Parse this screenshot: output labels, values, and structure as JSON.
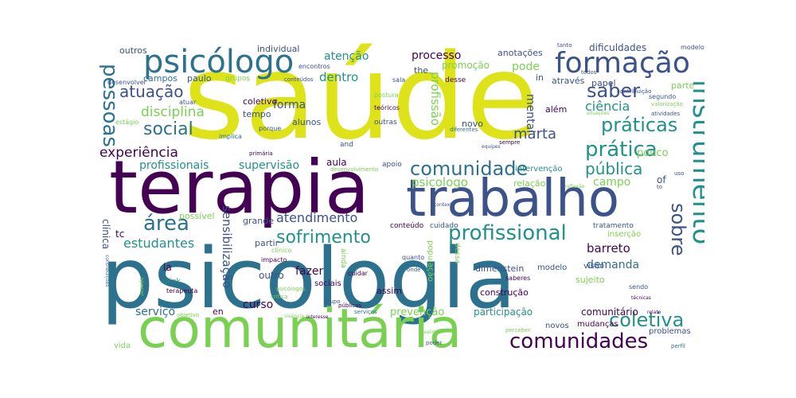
{
  "palette": {
    "yellow": "#dde318",
    "purple": "#440154",
    "teal": "#2c728e",
    "green": "#7ad151",
    "navy": "#3b528b",
    "seagreen": "#21918c"
  },
  "words": [
    {
      "text": "saúde",
      "color": "yellow"
    },
    {
      "text": "terapia",
      "color": "purple"
    },
    {
      "text": "psicologia",
      "color": "teal"
    },
    {
      "text": "comunitária",
      "color": "green"
    },
    {
      "text": "trabalho",
      "color": "navy"
    },
    {
      "text": "psicólogo",
      "color": "teal"
    },
    {
      "text": "formação",
      "color": "navy"
    },
    {
      "text": "instrumento",
      "color": "seagreen"
    },
    {
      "text": "comunidade",
      "color": "teal"
    },
    {
      "text": "profissional",
      "color": "seagreen"
    },
    {
      "text": "comunidades",
      "color": "purple"
    },
    {
      "text": "práticas",
      "color": "seagreen"
    },
    {
      "text": "prática",
      "color": "seagreen"
    },
    {
      "text": "pública",
      "color": "seagreen"
    },
    {
      "text": "coletiva",
      "color": "seagreen"
    },
    {
      "text": "pessoas",
      "color": "teal"
    },
    {
      "text": "sofrimento",
      "color": "seagreen"
    },
    {
      "text": "área",
      "color": "teal"
    },
    {
      "text": "social",
      "color": "teal"
    },
    {
      "text": "saber",
      "color": "navy"
    },
    {
      "text": "sobre",
      "color": "navy"
    },
    {
      "text": "atuação",
      "color": "navy"
    },
    {
      "text": "disciplina",
      "color": "green"
    },
    {
      "text": "ciência",
      "color": "seagreen"
    },
    {
      "text": "experiência",
      "color": "purple"
    },
    {
      "text": "marta",
      "color": "navy"
    },
    {
      "text": "profissionais",
      "color": "seagreen"
    },
    {
      "text": "supervisão",
      "color": "seagreen"
    },
    {
      "text": "estudantes",
      "color": "seagreen"
    },
    {
      "text": "atendimento",
      "color": "navy"
    },
    {
      "text": "sensibilização",
      "color": "navy"
    },
    {
      "text": "processo",
      "color": "purple"
    },
    {
      "text": "atenção",
      "color": "seagreen"
    },
    {
      "text": "dentro",
      "color": "seagreen"
    },
    {
      "text": "profissão",
      "color": "green"
    },
    {
      "text": "psicologo",
      "color": "green"
    },
    {
      "text": "forma",
      "color": "navy"
    },
    {
      "text": "aula",
      "color": "purple"
    },
    {
      "text": "campo",
      "color": "green"
    },
    {
      "text": "pode",
      "color": "green"
    },
    {
      "text": "mental",
      "color": "navy"
    },
    {
      "text": "pouco",
      "color": "green"
    },
    {
      "text": "barreto",
      "color": "purple"
    },
    {
      "text": "demanda",
      "color": "teal"
    },
    {
      "text": "curso",
      "color": "purple"
    },
    {
      "text": "fazer",
      "color": "purple"
    },
    {
      "text": "serviço",
      "color": "teal"
    },
    {
      "text": "prevenção",
      "color": "green"
    },
    {
      "text": "participação",
      "color": "seagreen"
    },
    {
      "text": "comunitário",
      "color": "purple"
    },
    {
      "text": "dificuldades",
      "color": "navy"
    },
    {
      "text": "outros",
      "color": "navy"
    },
    {
      "text": "individual",
      "color": "navy"
    },
    {
      "text": "anotações",
      "color": "navy"
    },
    {
      "text": "promoção",
      "color": "green"
    },
    {
      "text": "campos",
      "color": "teal"
    },
    {
      "text": "paulo",
      "color": "navy"
    },
    {
      "text": "grupos",
      "color": "green"
    },
    {
      "text": "através",
      "color": "navy"
    },
    {
      "text": "papel",
      "color": "navy"
    },
    {
      "text": "parte",
      "color": "green"
    },
    {
      "text": "coletivo",
      "color": "purple"
    },
    {
      "text": "tempo",
      "color": "navy"
    },
    {
      "text": "alunos",
      "color": "navy"
    },
    {
      "text": "novo",
      "color": "navy"
    },
    {
      "text": "além",
      "color": "purple"
    },
    {
      "text": "clínica",
      "color": "navy"
    },
    {
      "text": "possível",
      "color": "green"
    },
    {
      "text": "grande",
      "color": "navy"
    },
    {
      "text": "partir",
      "color": "navy"
    },
    {
      "text": "outro",
      "color": "navy"
    },
    {
      "text": "assim",
      "color": "purple"
    },
    {
      "text": "dimenstein",
      "color": "navy"
    },
    {
      "text": "modelo",
      "color": "navy"
    },
    {
      "text": "visão",
      "color": "navy"
    },
    {
      "text": "sujeito",
      "color": "green"
    },
    {
      "text": "construção",
      "color": "purple"
    },
    {
      "text": "mudanças",
      "color": "purple"
    },
    {
      "text": "novos",
      "color": "navy"
    },
    {
      "text": "relação",
      "color": "green"
    },
    {
      "text": "intervenção",
      "color": "seagreen"
    },
    {
      "text": "la",
      "color": "purple"
    },
    {
      "text": "tc",
      "color": "purple"
    },
    {
      "text": "of",
      "color": "navy"
    },
    {
      "text": "in",
      "color": "navy"
    },
    {
      "text": "the",
      "color": "navy"
    },
    {
      "text": "en",
      "color": "purple"
    },
    {
      "text": "vida",
      "color": "green"
    },
    {
      "text": "problemas",
      "color": "navy"
    },
    {
      "text": "inserção",
      "color": "green"
    },
    {
      "text": "tratamento",
      "color": "navy"
    },
    {
      "text": "sociais",
      "color": "purple"
    },
    {
      "text": "população",
      "color": "green"
    },
    {
      "text": "desenvolver",
      "color": "navy"
    },
    {
      "text": "atuar",
      "color": "navy"
    },
    {
      "text": "estágio",
      "color": "green"
    },
    {
      "text": "porque",
      "color": "navy"
    },
    {
      "text": "implica",
      "color": "teal"
    },
    {
      "text": "teóricos",
      "color": "purple"
    },
    {
      "text": "outras",
      "color": "navy"
    },
    {
      "text": "conteúdos",
      "color": "navy"
    },
    {
      "text": "encontros",
      "color": "navy"
    },
    {
      "text": "postura",
      "color": "green"
    },
    {
      "text": "desse",
      "color": "purple"
    },
    {
      "text": "sala",
      "color": "navy"
    },
    {
      "text": "tanto",
      "color": "navy"
    },
    {
      "text": "todos",
      "color": "navy"
    },
    {
      "text": "segundo",
      "color": "navy"
    },
    {
      "text": "modelos",
      "color": "navy"
    },
    {
      "text": "valorização",
      "color": "green"
    },
    {
      "text": "atividades",
      "color": "navy"
    },
    {
      "text": "sempre",
      "color": "purple"
    },
    {
      "text": "primária",
      "color": "purple"
    },
    {
      "text": "desenvolvimento",
      "color": "green"
    },
    {
      "text": "apoio",
      "color": "navy"
    },
    {
      "text": "and",
      "color": "navy"
    },
    {
      "text": "conteúdo",
      "color": "purple"
    },
    {
      "text": "cuidado",
      "color": "navy"
    },
    {
      "text": "cuidar",
      "color": "purple"
    },
    {
      "text": "ainda",
      "color": "green"
    },
    {
      "text": "quanto",
      "color": "navy"
    },
    {
      "text": "onde",
      "color": "navy"
    },
    {
      "text": "saberes",
      "color": "purple"
    },
    {
      "text": "sendo",
      "color": "navy"
    },
    {
      "text": "spink",
      "color": "seagreen"
    },
    {
      "text": "terapeuta",
      "color": "purple"
    },
    {
      "text": "apesar",
      "color": "green"
    },
    {
      "text": "impacto",
      "color": "purple"
    },
    {
      "text": "clínico",
      "color": "green"
    },
    {
      "text": "psicólogos",
      "color": "green"
    },
    {
      "text": "objetivo",
      "color": "green"
    },
    {
      "text": "crítica",
      "color": "green"
    },
    {
      "text": "públicas",
      "color": "purple"
    },
    {
      "text": "serviços",
      "color": "teal"
    },
    {
      "text": "interesse",
      "color": "purple"
    },
    {
      "text": "vivência",
      "color": "green"
    },
    {
      "text": "realidade",
      "color": "green"
    },
    {
      "text": "poder",
      "color": "navy"
    },
    {
      "text": "perceber",
      "color": "green"
    },
    {
      "text": "técnicas",
      "color": "purple"
    },
    {
      "text": "relato",
      "color": "purple"
    },
    {
      "text": "perfil",
      "color": "teal"
    },
    {
      "text": "contribuições",
      "color": "teal"
    },
    {
      "text": "contribuição",
      "color": "navy"
    },
    {
      "text": "reflexão",
      "color": "green"
    },
    {
      "text": "equipes",
      "color": "navy"
    },
    {
      "text": "grupo",
      "color": "navy"
    },
    {
      "text": "contexto",
      "color": "navy"
    },
    {
      "text": "diferentes",
      "color": "teal"
    },
    {
      "text": "dessa",
      "color": "green"
    },
    {
      "text": "uso",
      "color": "navy"
    },
    {
      "text": "to",
      "color": "navy"
    },
    {
      "text": "situações",
      "color": "green"
    }
  ]
}
